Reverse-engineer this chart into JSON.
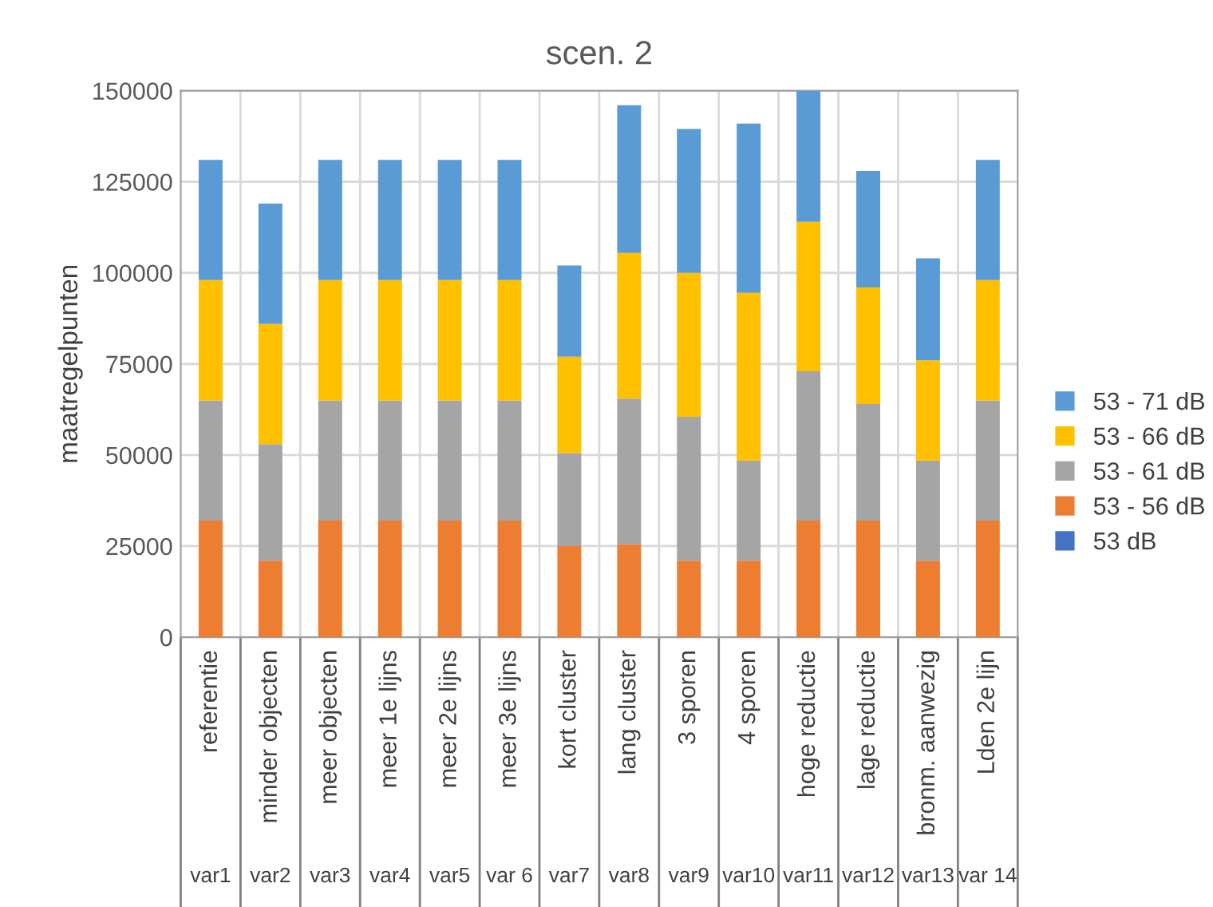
{
  "chart_data": {
    "type": "bar",
    "stacked": true,
    "title": "scen. 2",
    "ylabel": "maatregelpunten",
    "categories": [
      "referentie\nvar1",
      "minder objecten\nvar2",
      "meer objecten\nvar3",
      "meer 1e lijns\nvar4",
      "meer 2e lijns\nvar5",
      "meer 3e lijns\nvar 6",
      "kort cluster\nvar7",
      "lang cluster\nvar8",
      "3 sporen\nvar9",
      "4 sporen\nvar10",
      "hoge reductie\nvar11",
      "lage reductie\nvar12",
      "bronm. aanwezig\nvar13",
      "Lden 2e lijn\nvar 14"
    ],
    "series": [
      {
        "name": "53 dB",
        "color": "#4472c4",
        "values": [
          0,
          0,
          0,
          0,
          0,
          0,
          0,
          0,
          0,
          0,
          0,
          0,
          0,
          0
        ]
      },
      {
        "name": "53 - 56 dB",
        "color": "#ed7d31",
        "values": [
          32000,
          21000,
          32000,
          32000,
          32000,
          32000,
          25000,
          25500,
          21000,
          21000,
          32000,
          32000,
          21000,
          32000
        ]
      },
      {
        "name": "53 - 61 dB",
        "color": "#a5a5a5",
        "values": [
          33000,
          32000,
          33000,
          33000,
          33000,
          33000,
          25500,
          40000,
          39500,
          27500,
          41000,
          32000,
          27500,
          33000
        ]
      },
      {
        "name": "53 - 66 dB",
        "color": "#ffc000",
        "values": [
          33000,
          33000,
          33000,
          33000,
          33000,
          33000,
          26500,
          40000,
          39500,
          46000,
          41000,
          32000,
          27500,
          33000
        ]
      },
      {
        "name": "53 - 71 dB",
        "color": "#5b9bd5",
        "values": [
          33000,
          33000,
          33000,
          33000,
          33000,
          33000,
          25000,
          40500,
          39500,
          46500,
          36000,
          32000,
          28000,
          33000
        ]
      }
    ],
    "ylim": [
      0,
      150000
    ],
    "yticks": [
      0,
      25000,
      50000,
      75000,
      100000,
      125000,
      150000
    ],
    "grid": true,
    "legend": "right"
  }
}
